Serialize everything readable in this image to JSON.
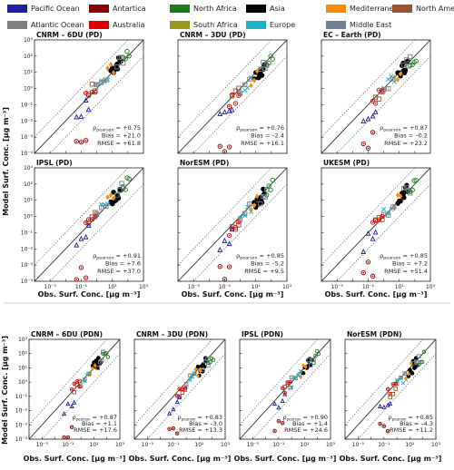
{
  "legend": [
    {
      "label": "Pacific Ocean",
      "color": "#1f1fa0"
    },
    {
      "label": "Antartica",
      "color": "#8b0000"
    },
    {
      "label": "North Africa",
      "color": "#1f7a1f"
    },
    {
      "label": "Asia",
      "color": "#000000"
    },
    {
      "label": "Mediterranean",
      "color": "#ff8c00"
    },
    {
      "label": "North America",
      "color": "#a0522d"
    },
    {
      "label": "Atlantic Ocean",
      "color": "#7f7f7f"
    },
    {
      "label": "Australia",
      "color": "#e00000"
    },
    {
      "label": "South Africa",
      "color": "#9a9a1a"
    },
    {
      "label": "Europe",
      "color": "#20b2c8"
    },
    {
      "label": "Middle East",
      "color": "#708090"
    }
  ],
  "axis_labels": {
    "y": "Model Surf. Conc. [μg m⁻³]",
    "x": "Obs. Surf. Conc. [μg m⁻³]",
    "y_small": "Model Surf. Conc. [μg m⁻³]",
    "x_small": "Obs. Surf. Conc. [μg m⁻³]"
  },
  "chart_data": [
    {
      "type": "scatter",
      "title": "CNRM – 6DU (PD)",
      "pearson": "+0.75",
      "bias": "+21.0",
      "rmse": "+61.8",
      "xscale": "log",
      "yscale": "log",
      "xlim": [
        0.0001,
        1000
      ],
      "ylim": [
        0.0001,
        1000
      ]
    },
    {
      "type": "scatter",
      "title": "CNRM – 3DU (PD)",
      "pearson": "+0.76",
      "bias": "–2.4",
      "rmse": "+16.1",
      "xscale": "log",
      "yscale": "log",
      "xlim": [
        0.0001,
        1000
      ],
      "ylim": [
        0.0001,
        1000
      ]
    },
    {
      "type": "scatter",
      "title": "EC – Earth (PD)",
      "pearson": "+0.87",
      "bias": "–0.2",
      "rmse": "+23.2",
      "xscale": "log",
      "yscale": "log",
      "xlim": [
        0.0001,
        1000
      ],
      "ylim": [
        0.0001,
        1000
      ]
    },
    {
      "type": "scatter",
      "title": "IPSL (PD)",
      "pearson": "+0.91",
      "bias": "+7.6",
      "rmse": "+37.0",
      "xscale": "log",
      "yscale": "log",
      "xlim": [
        0.0001,
        1000
      ],
      "ylim": [
        0.0001,
        1000
      ]
    },
    {
      "type": "scatter",
      "title": "NorESM (PD)",
      "pearson": "+0.85",
      "bias": "–5.2",
      "rmse": "+9.5",
      "xscale": "log",
      "yscale": "log",
      "xlim": [
        0.0001,
        1000
      ],
      "ylim": [
        0.0001,
        1000
      ]
    },
    {
      "type": "scatter",
      "title": "UKESM (PD)",
      "pearson": "+0.85",
      "bias": "+7.2",
      "rmse": "+51.4",
      "xscale": "log",
      "yscale": "log",
      "xlim": [
        0.0001,
        1000
      ],
      "ylim": [
        0.0001,
        1000
      ]
    },
    {
      "type": "scatter",
      "title": "CNRM – 6DU (PDN)",
      "pearson": "+0.87",
      "bias": "+1.1",
      "rmse": "+17.6",
      "xscale": "log",
      "yscale": "log",
      "xlim": [
        0.0001,
        1000
      ],
      "ylim": [
        0.0001,
        1000
      ]
    },
    {
      "type": "scatter",
      "title": "CNRM – 3DU (PDN)",
      "pearson": "+0.83",
      "bias": "–3.0",
      "rmse": "+13.3",
      "xscale": "log",
      "yscale": "log",
      "xlim": [
        0.0001,
        1000
      ],
      "ylim": [
        0.0001,
        1000
      ]
    },
    {
      "type": "scatter",
      "title": "IPSL (PDN)",
      "pearson": "+0.90",
      "bias": "+1.4",
      "rmse": "+24.6",
      "xscale": "log",
      "yscale": "log",
      "xlim": [
        0.0001,
        1000
      ],
      "ylim": [
        0.0001,
        1000
      ]
    },
    {
      "type": "scatter",
      "title": "NorESM (PDN)",
      "pearson": "+0.85",
      "bias": "–4.3",
      "rmse": "+11.2",
      "xscale": "log",
      "yscale": "log",
      "xlim": [
        0.0001,
        1000
      ],
      "ylim": [
        0.0001,
        1000
      ]
    }
  ],
  "tick_labels_big": [
    "10⁻⁴",
    "10⁻³",
    "10⁻²",
    "10⁻¹",
    "10⁰",
    "10¹",
    "10²",
    "10³"
  ],
  "tick_labels_x": [
    "10⁻³",
    "10⁻¹",
    "10¹",
    "10³"
  ],
  "stat_labels": {
    "pearson": "ρ",
    "pearson_sub": "pearson",
    "bias": "Bias",
    "rmse": "RMSE"
  },
  "point_groups": [
    {
      "region": "Asia",
      "obs": [
        8,
        10,
        12,
        15,
        18,
        20,
        22,
        25,
        30,
        35
      ],
      "shape": "circle-filled"
    },
    {
      "region": "Middle East",
      "obs": [
        20,
        30,
        40,
        50
      ],
      "shape": "square-open"
    },
    {
      "region": "North Africa",
      "obs": [
        50,
        70,
        90,
        120
      ],
      "shape": "circle-open"
    },
    {
      "region": "Europe",
      "obs": [
        1,
        2,
        3,
        5
      ],
      "shape": "x"
    },
    {
      "region": "Mediterranean",
      "obs": [
        5,
        8,
        12
      ],
      "shape": "diamond"
    },
    {
      "region": "North America",
      "obs": [
        0.3,
        0.5,
        0.8
      ],
      "shape": "square-open"
    },
    {
      "region": "Pacific Ocean",
      "obs": [
        0.05,
        0.1,
        0.2,
        0.3
      ],
      "shape": "triangle-open"
    },
    {
      "region": "Atlantic Ocean",
      "obs": [
        1,
        2,
        4
      ],
      "shape": "square-cross"
    },
    {
      "region": "Australia",
      "obs": [
        0.2,
        0.3,
        0.5,
        0.8
      ],
      "shape": "circle-dot"
    },
    {
      "region": "Antartica",
      "obs": [
        0.05,
        0.1,
        0.2
      ],
      "shape": "circle-dot"
    }
  ]
}
